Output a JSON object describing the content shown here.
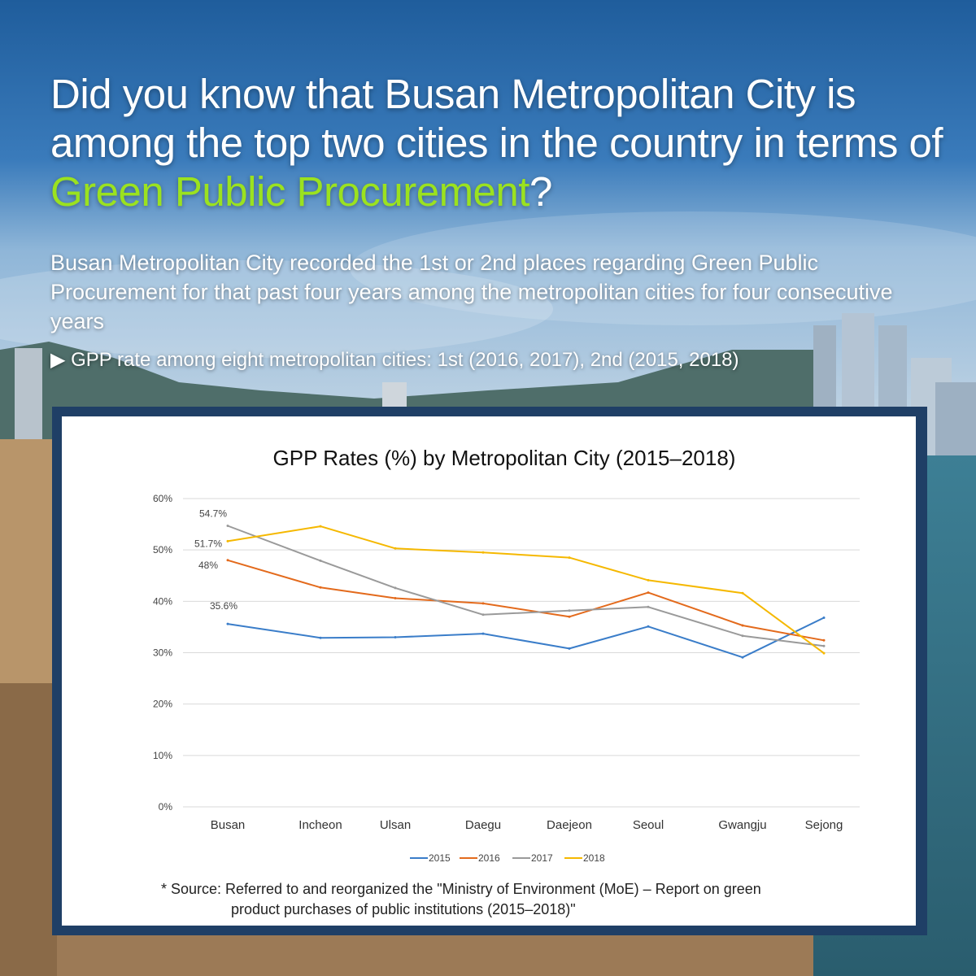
{
  "headline": {
    "part1": "Did you know that Busan Metropolitan City is among the top two cities in the country in terms of ",
    "highlight": "Green Public Procurement",
    "part2": "?"
  },
  "subtitle": "Busan Metropolitan City recorded the 1st or 2nd places regarding Green Public Procurement for that past four years among the metropolitan cities for four consecutive years",
  "bullet": "▶ GPP rate among eight metropolitan cities: 1st (2016, 2017), 2nd (2015, 2018)",
  "source": {
    "line1": "* Source: Referred to and reorganized the \"Ministry of Environment (MoE) – Report on green",
    "line2": "product purchases of public institutions (2015–2018)\""
  },
  "colors": {
    "accent_green": "#9be21f",
    "card_border": "#1f3f66"
  },
  "chart_data": {
    "type": "line",
    "title": "GPP Rates (%) by Metropolitan City (2015–2018)",
    "categories": [
      "Busan",
      "Incheon",
      "Ulsan",
      "Daegu",
      "Daejeon",
      "Seoul",
      "Gwangju",
      "Sejong"
    ],
    "ylim": [
      0,
      60
    ],
    "yticks": [
      0,
      10,
      20,
      30,
      40,
      50,
      60
    ],
    "ytick_labels": [
      "0%",
      "10%",
      "20%",
      "30%",
      "40%",
      "50%",
      "60%"
    ],
    "grid": true,
    "legend_position": "bottom",
    "series": [
      {
        "name": "2015",
        "color": "#3a7dc9",
        "values": [
          35.6,
          32.9,
          33.0,
          33.7,
          30.8,
          35.1,
          29.1,
          36.8
        ],
        "label": "35.6%"
      },
      {
        "name": "2016",
        "color": "#e36a1c",
        "values": [
          48.0,
          42.7,
          40.6,
          39.6,
          37.0,
          41.7,
          35.3,
          32.4
        ],
        "label": "48%"
      },
      {
        "name": "2017",
        "color": "#9a9a9a",
        "values": [
          54.7,
          47.9,
          42.6,
          37.4,
          38.2,
          38.9,
          33.3,
          31.3
        ],
        "label": "54.7%"
      },
      {
        "name": "2018",
        "color": "#f5b800",
        "values": [
          51.7,
          54.6,
          50.3,
          49.5,
          48.5,
          44.1,
          41.6,
          29.9
        ],
        "label": "51.7%"
      }
    ]
  }
}
